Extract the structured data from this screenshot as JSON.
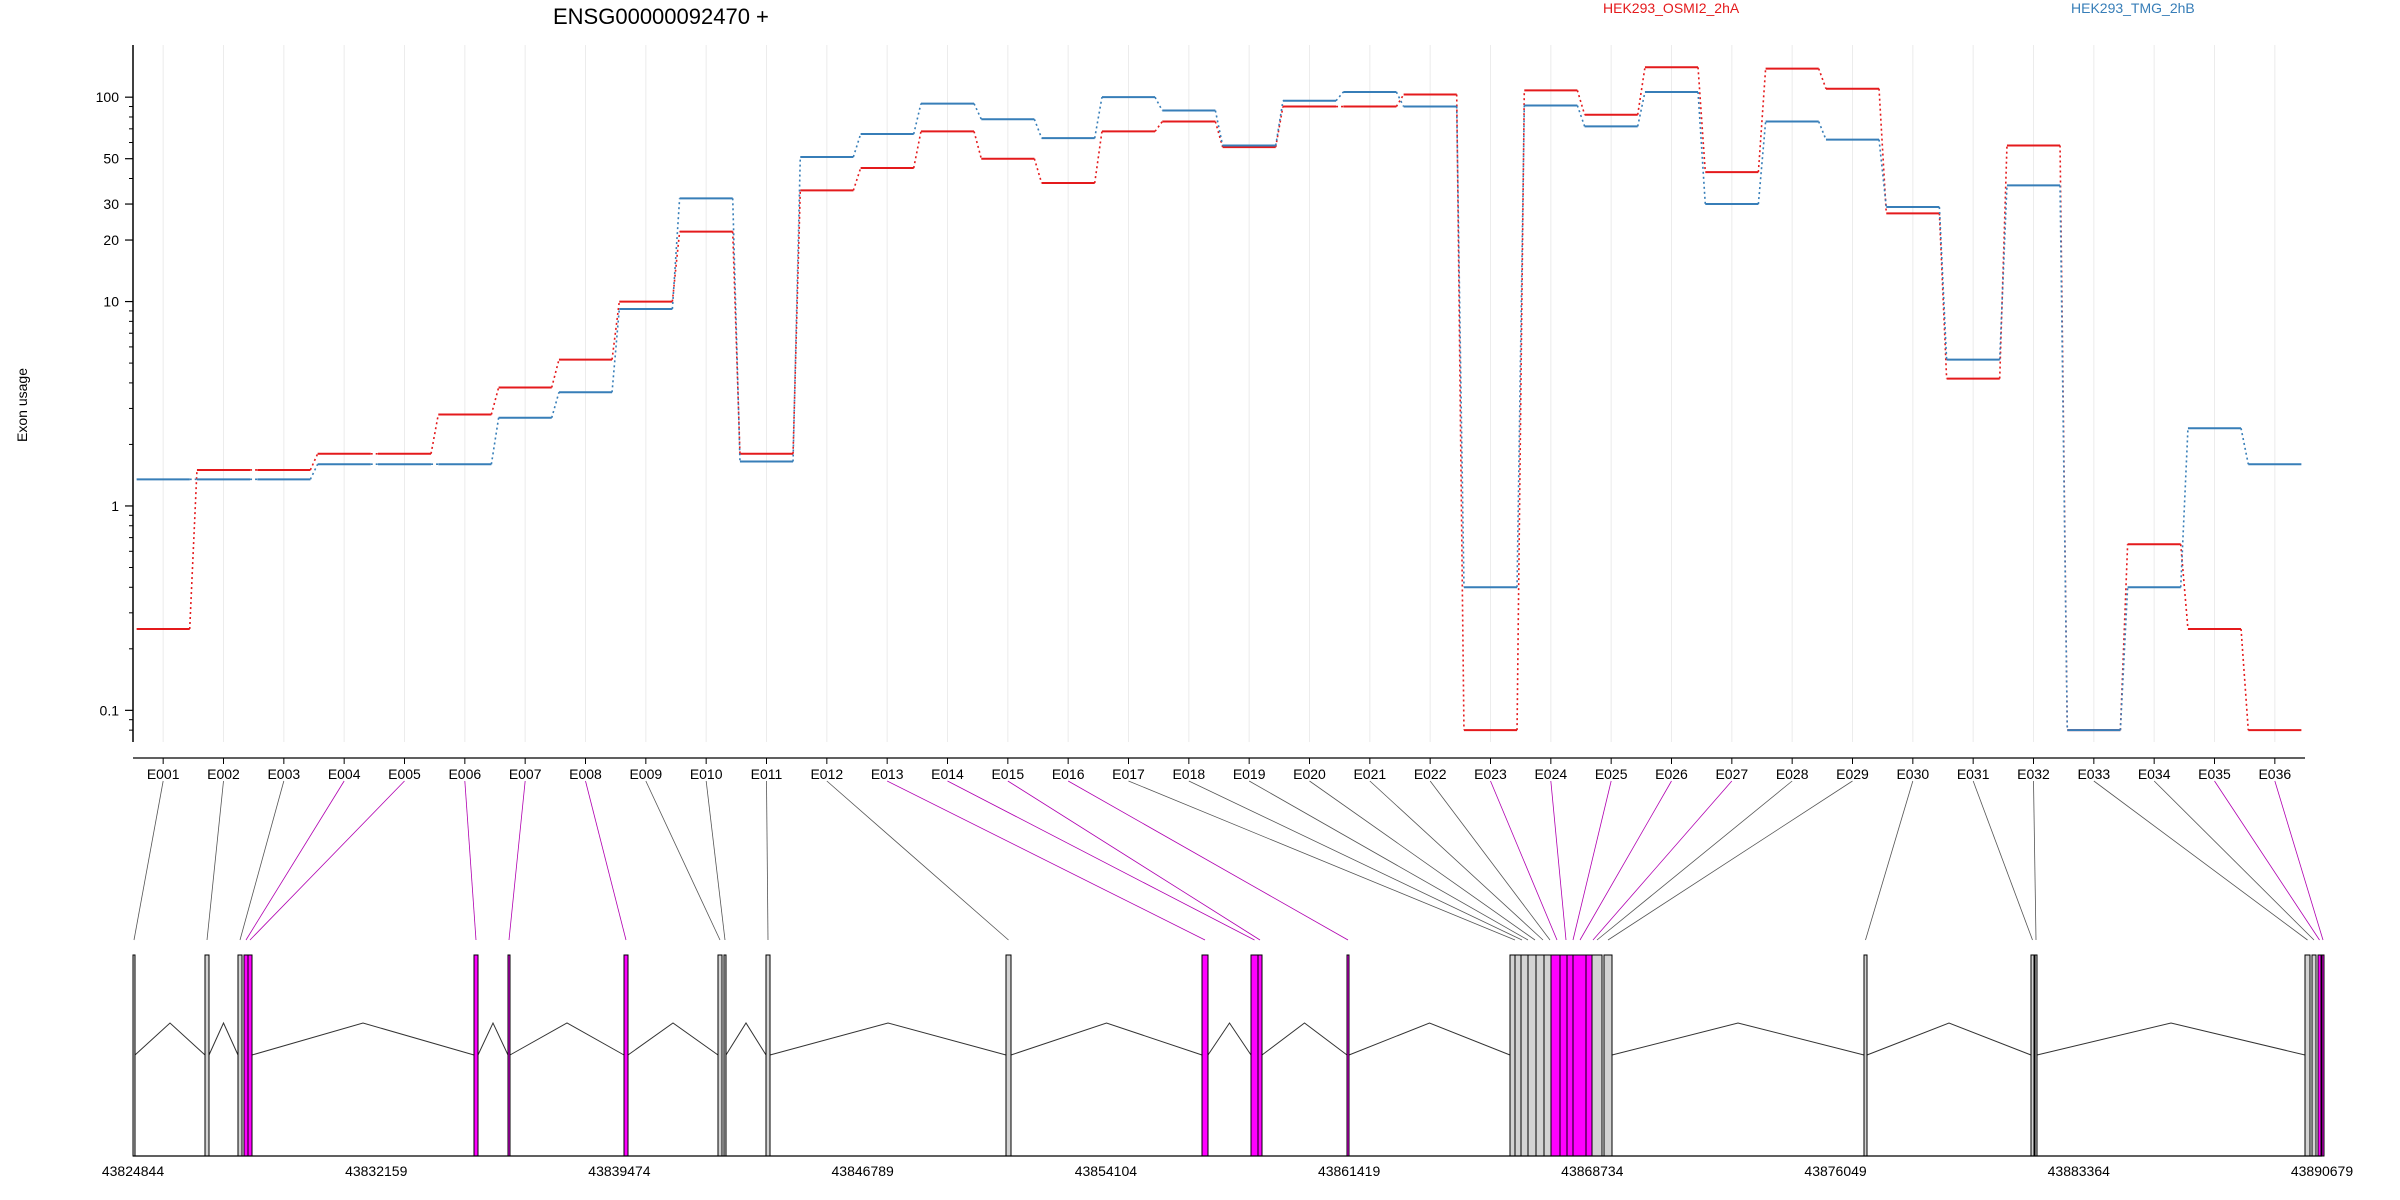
{
  "chart_data": {
    "type": "line",
    "title": "ENSG00000092470 +",
    "ylabel": "Exon usage",
    "xlabel": "",
    "y_scale": "log",
    "ylim": [
      0.07,
      180
    ],
    "y_ticks": [
      "0.1",
      "1",
      "10",
      "20",
      "30",
      "50",
      "100"
    ],
    "y_tick_values": [
      0.1,
      1,
      10,
      20,
      30,
      50,
      100
    ],
    "categories": [
      "E001",
      "E002",
      "E003",
      "E004",
      "E005",
      "E006",
      "E007",
      "E008",
      "E009",
      "E010",
      "E011",
      "E012",
      "E013",
      "E014",
      "E015",
      "E016",
      "E017",
      "E018",
      "E019",
      "E020",
      "E021",
      "E022",
      "E023",
      "E024",
      "E025",
      "E026",
      "E027",
      "E028",
      "E029",
      "E030",
      "E031",
      "E032",
      "E033",
      "E034",
      "E035",
      "E036"
    ],
    "series": [
      {
        "name": "HEK293_OSMI2_2hA",
        "color": "#e41a1c",
        "values": [
          0.25,
          1.5,
          1.5,
          1.8,
          1.8,
          2.8,
          3.8,
          5.2,
          10,
          22,
          1.8,
          35,
          45,
          68,
          50,
          38,
          68,
          76,
          57,
          90,
          90,
          103,
          0.08,
          108,
          82,
          140,
          43,
          138,
          110,
          27,
          4.2,
          58,
          0.08,
          0.65,
          0.25,
          0.08
        ]
      },
      {
        "name": "HEK293_TMG_2hB",
        "color": "#377eb8",
        "values": [
          1.35,
          1.35,
          1.35,
          1.6,
          1.6,
          1.6,
          2.7,
          3.6,
          9.2,
          32,
          1.65,
          51,
          66,
          93,
          78,
          63,
          100,
          86,
          58,
          96,
          106,
          90,
          0.4,
          91,
          72,
          106,
          30,
          76,
          62,
          29,
          5.2,
          37,
          0.08,
          0.4,
          2.4,
          1.6
        ]
      }
    ],
    "gene_model": {
      "genomic_ticks": [
        "43824844",
        "43832159",
        "43839474",
        "43846789",
        "43854104",
        "43861419",
        "43868734",
        "43876049",
        "43883364",
        "43890679"
      ],
      "highlight_color": "#ff00ff",
      "normal_exon_color": "#d3d3d3",
      "exon_highlighted": [
        false,
        false,
        false,
        true,
        true,
        true,
        true,
        true,
        false,
        false,
        false,
        false,
        true,
        true,
        true,
        true,
        false,
        false,
        false,
        false,
        false,
        false,
        true,
        true,
        true,
        true,
        true,
        false,
        false,
        false,
        false,
        false,
        false,
        false,
        true,
        true
      ]
    }
  }
}
